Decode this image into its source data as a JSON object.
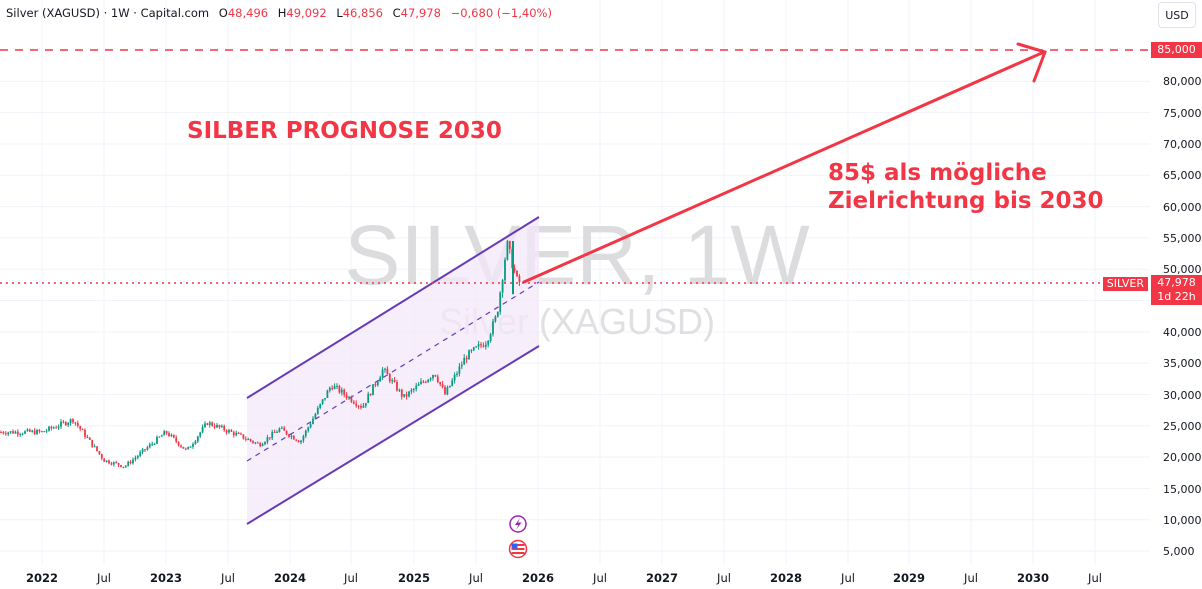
{
  "header": {
    "symbol": "Silver (XAGUSD) · 1W · Capital.com",
    "open_label": "O",
    "open": "48,496",
    "high_label": "H",
    "high": "49,092",
    "low_label": "L",
    "low": "46,856",
    "close_label": "C",
    "close": "47,978",
    "change": "−0,680 (−1,40%)",
    "currency_button": "USD"
  },
  "watermark": {
    "main": "SILVER, 1W",
    "sub": "Silver (XAGUSD)"
  },
  "annotations": {
    "title": "SILBER PROGNOSE 2030",
    "note_line1": "85$ als mögliche",
    "note_line2": "Zielrichtung bis 2030"
  },
  "price_axis": {
    "labels": [
      "80,000",
      "75,000",
      "70,000",
      "65,000",
      "60,000",
      "55,000",
      "50,000",
      "40,000",
      "35,000",
      "30,000",
      "25,000",
      "20,000",
      "15,000",
      "10,000",
      "5,000"
    ],
    "target_badge": "85,000",
    "current_price": "47,978",
    "countdown": "1d 22h",
    "symbol_badge": "SILVER"
  },
  "time_axis": {
    "labels": [
      "2022",
      "Jul",
      "2023",
      "Jul",
      "2024",
      "Jul",
      "2025",
      "Jul",
      "2026",
      "Jul",
      "2027",
      "Jul",
      "2028",
      "Jul",
      "2029",
      "Jul",
      "2030",
      "Jul"
    ]
  },
  "icons": {
    "events": [
      "lightning-event-icon",
      "us-flag-event-icon"
    ]
  },
  "colors": {
    "up": "#089981",
    "down": "#f23645",
    "channel": "#673ab7",
    "channel_fill": "#f3e8f9",
    "annotation": "#f23645",
    "grid": "#f0f3fa"
  },
  "chart_data": {
    "type": "candlestick",
    "title": "SILBER PROGNOSE 2030",
    "symbol": "Silver (XAGUSD)",
    "interval": "1W",
    "xlabel": "",
    "ylabel": "USD",
    "ylim": [
      5000,
      85000
    ],
    "yticks": [
      5000,
      10000,
      15000,
      20000,
      25000,
      30000,
      35000,
      40000,
      45000,
      50000,
      55000,
      60000,
      65000,
      70000,
      75000,
      80000,
      85000
    ],
    "xticks": [
      "2022",
      "Jul",
      "2023",
      "Jul",
      "2024",
      "Jul",
      "2025",
      "Jul",
      "2026",
      "Jul",
      "2027",
      "Jul",
      "2028",
      "Jul",
      "2029",
      "Jul",
      "2030",
      "Jul"
    ],
    "grid": true,
    "last_bar": {
      "open": 48.496,
      "high": 49.092,
      "low": 46.856,
      "close": 47.978,
      "change": -0.68,
      "change_pct": -1.4
    },
    "approx_price_path": [
      {
        "date": "2022-01",
        "price": 24000
      },
      {
        "date": "2022-04",
        "price": 26000
      },
      {
        "date": "2022-07",
        "price": 19500
      },
      {
        "date": "2022-09",
        "price": 18500
      },
      {
        "date": "2023-01",
        "price": 24000
      },
      {
        "date": "2023-03",
        "price": 21000
      },
      {
        "date": "2023-05",
        "price": 25500
      },
      {
        "date": "2023-08",
        "price": 23500
      },
      {
        "date": "2023-10",
        "price": 22000
      },
      {
        "date": "2023-12",
        "price": 24500
      },
      {
        "date": "2024-02",
        "price": 22500
      },
      {
        "date": "2024-05",
        "price": 31500
      },
      {
        "date": "2024-08",
        "price": 28000
      },
      {
        "date": "2024-10",
        "price": 34000
      },
      {
        "date": "2024-12",
        "price": 29500
      },
      {
        "date": "2025-03",
        "price": 33500
      },
      {
        "date": "2025-04",
        "price": 30000
      },
      {
        "date": "2025-06",
        "price": 36000
      },
      {
        "date": "2025-08",
        "price": 38500
      },
      {
        "date": "2025-09",
        "price": 42500
      },
      {
        "date": "2025-10",
        "price": 54000
      },
      {
        "date": "2025-11",
        "price": 47978
      }
    ],
    "channel": {
      "start": "2023-08",
      "end": "2025-12",
      "upper": [
        29500,
        58000
      ],
      "middle": [
        19500,
        47000
      ],
      "lower": [
        9500,
        37500
      ]
    },
    "target": {
      "price": 85000,
      "date": "2030",
      "label": "85$ als mögliche Zielrichtung bis 2030"
    },
    "current_price_line": 47978
  }
}
